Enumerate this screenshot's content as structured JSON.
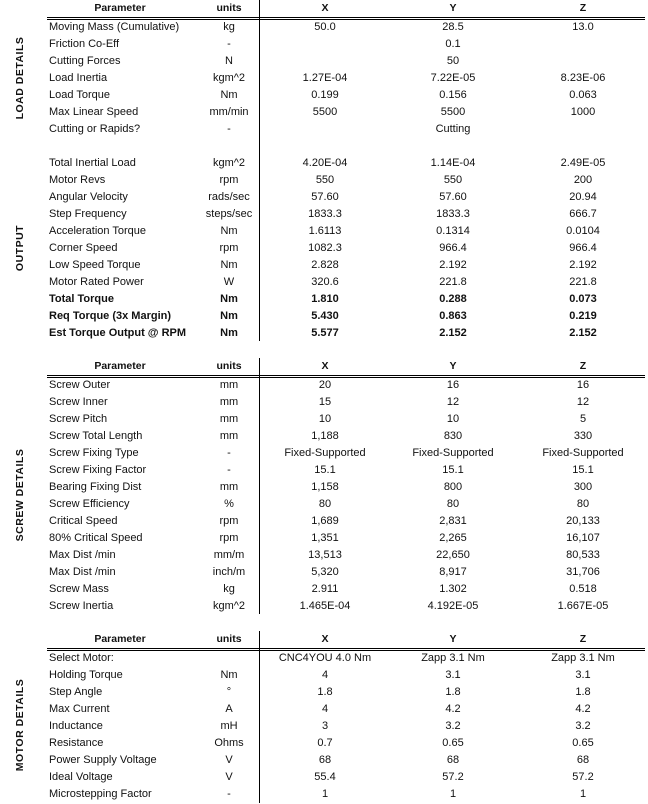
{
  "tables": [
    {
      "side_labels": [
        "LOAD DETAILS",
        "OUTPUT"
      ],
      "header": {
        "parameter": "Parameter",
        "units": "units",
        "x": "X",
        "y": "Y",
        "z": "Z"
      },
      "rows": [
        {
          "p": "Moving Mass (Cumulative)",
          "u": "kg",
          "x": "50.0",
          "y": "28.5",
          "z": "13.0"
        },
        {
          "p": "Friction Co-Eff",
          "u": "-",
          "x": "",
          "y": "0.1",
          "z": ""
        },
        {
          "p": "Cutting Forces",
          "u": "N",
          "x": "",
          "y": "50",
          "z": ""
        },
        {
          "p": "Load Inertia",
          "u": "kgm^2",
          "x": "1.27E-04",
          "y": "7.22E-05",
          "z": "8.23E-06"
        },
        {
          "p": "Load Torque",
          "u": "Nm",
          "x": "0.199",
          "y": "0.156",
          "z": "0.063"
        },
        {
          "p": "Max Linear Speed",
          "u": "mm/min",
          "x": "5500",
          "y": "5500",
          "z": "1000"
        },
        {
          "p": "Cutting or Rapids?",
          "u": "-",
          "x": "",
          "y": "Cutting",
          "z": ""
        },
        {
          "p": "",
          "u": "",
          "x": "",
          "y": "",
          "z": ""
        },
        {
          "p": "Total Inertial Load",
          "u": "kgm^2",
          "x": "4.20E-04",
          "y": "1.14E-04",
          "z": "2.49E-05"
        },
        {
          "p": "Motor Revs",
          "u": "rpm",
          "x": "550",
          "y": "550",
          "z": "200"
        },
        {
          "p": "Angular Velocity",
          "u": "rads/sec",
          "x": "57.60",
          "y": "57.60",
          "z": "20.94"
        },
        {
          "p": "Step Frequency",
          "u": "steps/sec",
          "x": "1833.3",
          "y": "1833.3",
          "z": "666.7"
        },
        {
          "p": "Acceleration Torque",
          "u": "Nm",
          "x": "1.6113",
          "y": "0.1314",
          "z": "0.0104"
        },
        {
          "p": "Corner Speed",
          "u": "rpm",
          "x": "1082.3",
          "y": "966.4",
          "z": "966.4"
        },
        {
          "p": "Low Speed Torque",
          "u": "Nm",
          "x": "2.828",
          "y": "2.192",
          "z": "2.192"
        },
        {
          "p": "Motor Rated Power",
          "u": "W",
          "x": "320.6",
          "y": "221.8",
          "z": "221.8"
        },
        {
          "p": "Total Torque",
          "u": "Nm",
          "x": "1.810",
          "y": "0.288",
          "z": "0.073",
          "bold": true
        },
        {
          "p": "Req Torque (3x Margin)",
          "u": "Nm",
          "x": "5.430",
          "y": "0.863",
          "z": "0.219",
          "bold": true
        },
        {
          "p": "Est Torque Output @ RPM",
          "u": "Nm",
          "x": "5.577",
          "y": "2.152",
          "z": "2.152",
          "bold": true
        }
      ]
    },
    {
      "side_labels": [
        "SCREW DETAILS"
      ],
      "header": {
        "parameter": "Parameter",
        "units": "units",
        "x": "X",
        "y": "Y",
        "z": "Z"
      },
      "rows": [
        {
          "p": "Screw Outer",
          "u": "mm",
          "x": "20",
          "y": "16",
          "z": "16"
        },
        {
          "p": "Screw Inner",
          "u": "mm",
          "x": "15",
          "y": "12",
          "z": "12"
        },
        {
          "p": "Screw Pitch",
          "u": "mm",
          "x": "10",
          "y": "10",
          "z": "5"
        },
        {
          "p": "Screw Total Length",
          "u": "mm",
          "x": "1,188",
          "y": "830",
          "z": "330"
        },
        {
          "p": "Screw Fixing Type",
          "u": "-",
          "x": "Fixed-Supported",
          "y": "Fixed-Supported",
          "z": "Fixed-Supported"
        },
        {
          "p": "Screw Fixing Factor",
          "u": "-",
          "x": "15.1",
          "y": "15.1",
          "z": "15.1"
        },
        {
          "p": "Bearing Fixing Dist",
          "u": "mm",
          "x": "1,158",
          "y": "800",
          "z": "300"
        },
        {
          "p": "Screw Efficiency",
          "u": "%",
          "x": "80",
          "y": "80",
          "z": "80"
        },
        {
          "p": "Critical Speed",
          "u": "rpm",
          "x": "1,689",
          "y": "2,831",
          "z": "20,133"
        },
        {
          "p": "80% Critical Speed",
          "u": "rpm",
          "x": "1,351",
          "y": "2,265",
          "z": "16,107"
        },
        {
          "p": "Max Dist /min",
          "u": "mm/m",
          "x": "13,513",
          "y": "22,650",
          "z": "80,533"
        },
        {
          "p": "Max Dist /min",
          "u": "inch/m",
          "x": "5,320",
          "y": "8,917",
          "z": "31,706"
        },
        {
          "p": "Screw Mass",
          "u": "kg",
          "x": "2.911",
          "y": "1.302",
          "z": "0.518"
        },
        {
          "p": "Screw Inertia",
          "u": "kgm^2",
          "x": "1.465E-04",
          "y": "4.192E-05",
          "z": "1.667E-05"
        }
      ]
    },
    {
      "side_labels": [
        "MOTOR DETAILS"
      ],
      "header": {
        "parameter": "Parameter",
        "units": "units",
        "x": "X",
        "y": "Y",
        "z": "Z"
      },
      "rows": [
        {
          "p": "Select Motor:",
          "u": "",
          "x": "CNC4YOU 4.0 Nm",
          "y": "Zapp 3.1 Nm",
          "z": "Zapp 3.1 Nm"
        },
        {
          "p": "Holding Torque",
          "u": "Nm",
          "x": "4",
          "y": "3.1",
          "z": "3.1"
        },
        {
          "p": "Step Angle",
          "u": "°",
          "x": "1.8",
          "y": "1.8",
          "z": "1.8"
        },
        {
          "p": "Max Current",
          "u": "A",
          "x": "4",
          "y": "4.2",
          "z": "4.2"
        },
        {
          "p": "Inductance",
          "u": "mH",
          "x": "3",
          "y": "3.2",
          "z": "3.2"
        },
        {
          "p": "Resistance",
          "u": "Ohms",
          "x": "0.7",
          "y": "0.65",
          "z": "0.65"
        },
        {
          "p": "Power Supply Voltage",
          "u": "V",
          "x": "68",
          "y": "68",
          "z": "68"
        },
        {
          "p": "Ideal Voltage",
          "u": "V",
          "x": "55.4",
          "y": "57.2",
          "z": "57.2"
        },
        {
          "p": "Microstepping Factor",
          "u": "-",
          "x": "1",
          "y": "1",
          "z": "1"
        }
      ]
    }
  ]
}
